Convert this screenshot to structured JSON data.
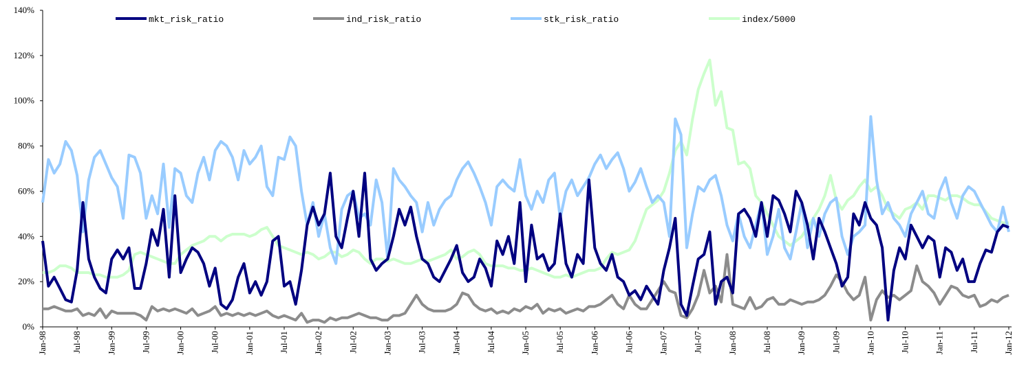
{
  "chart_data": {
    "type": "line",
    "legend": "top",
    "grid": false,
    "ylim": [
      0,
      140
    ],
    "yticks": [
      {
        "value": 0,
        "label": "0%"
      },
      {
        "value": 20,
        "label": "20%"
      },
      {
        "value": 40,
        "label": "40%"
      },
      {
        "value": 60,
        "label": "60%"
      },
      {
        "value": 80,
        "label": "80%"
      },
      {
        "value": 100,
        "label": "100%"
      },
      {
        "value": 120,
        "label": "120%"
      },
      {
        "value": 140,
        "label": "140%"
      }
    ],
    "categories": [
      "Jan-98",
      null,
      null,
      null,
      null,
      null,
      "Jul-98",
      null,
      null,
      null,
      null,
      null,
      "Jan-99",
      null,
      null,
      null,
      null,
      null,
      "Jul-99",
      null,
      null,
      null,
      null,
      null,
      "Jan-00",
      null,
      null,
      null,
      null,
      null,
      "Jul-00",
      null,
      null,
      null,
      null,
      null,
      "Jan-01",
      null,
      null,
      null,
      null,
      null,
      "Jul-01",
      null,
      null,
      null,
      null,
      null,
      "Jan-02",
      null,
      null,
      null,
      null,
      null,
      "Jul-02",
      null,
      null,
      null,
      null,
      null,
      "Jan-03",
      null,
      null,
      null,
      null,
      null,
      "Jul-03",
      null,
      null,
      null,
      null,
      null,
      "Jan-04",
      null,
      null,
      null,
      null,
      null,
      "Jul-04",
      null,
      null,
      null,
      null,
      null,
      "Jan-05",
      null,
      null,
      null,
      null,
      null,
      "Jul-05",
      null,
      null,
      null,
      null,
      null,
      "Jan-06",
      null,
      null,
      null,
      null,
      null,
      "Jul-06",
      null,
      null,
      null,
      null,
      null,
      "Jan-07",
      null,
      null,
      null,
      null,
      null,
      "Jul-07",
      null,
      null,
      null,
      null,
      null,
      "Jan-08",
      null,
      null,
      null,
      null,
      null,
      "Jul-08",
      null,
      null,
      null,
      null,
      null,
      "Jan-09",
      null,
      null,
      null,
      null,
      null,
      "Jul-09",
      null,
      null,
      null,
      null,
      null,
      "Jan-10",
      null,
      null,
      null,
      null,
      null,
      "Jul-10",
      null,
      null,
      null,
      null,
      null,
      "Jan-11",
      null,
      null,
      null,
      null,
      null,
      "Jul-11",
      null,
      null,
      null,
      null,
      null,
      "Jan-12"
    ],
    "series": [
      {
        "name": "mkt_risk_ratio",
        "color": "#000080",
        "values": [
          38,
          18,
          22,
          17,
          12,
          11,
          25,
          55,
          30,
          22,
          17,
          15,
          30,
          34,
          30,
          35,
          17,
          17,
          28,
          43,
          36,
          52,
          22,
          58,
          24,
          30,
          35,
          33,
          28,
          18,
          26,
          10,
          8,
          12,
          22,
          28,
          15,
          20,
          14,
          20,
          38,
          40,
          18,
          20,
          10,
          25,
          45,
          53,
          45,
          50,
          68,
          40,
          35,
          48,
          60,
          40,
          68,
          30,
          25,
          28,
          30,
          40,
          52,
          45,
          53,
          40,
          30,
          28,
          22,
          20,
          25,
          30,
          36,
          24,
          20,
          22,
          30,
          26,
          18,
          38,
          32,
          40,
          28,
          55,
          20,
          45,
          30,
          32,
          25,
          28,
          50,
          28,
          22,
          32,
          28,
          65,
          35,
          28,
          25,
          32,
          22,
          20,
          14,
          16,
          12,
          18,
          14,
          10,
          25,
          35,
          48,
          10,
          5,
          18,
          30,
          32,
          42,
          10,
          20,
          22,
          15,
          50,
          52,
          48,
          40,
          55,
          40,
          58,
          56,
          50,
          42,
          60,
          55,
          45,
          30,
          48,
          42,
          35,
          28,
          18,
          22,
          50,
          45,
          55,
          48,
          45,
          35,
          3,
          25,
          35,
          30,
          45,
          40,
          35,
          40,
          38,
          22,
          35,
          33,
          25,
          30,
          20,
          20,
          28,
          34,
          33,
          42,
          45,
          44
        ]
      },
      {
        "name": "ind_risk_ratio",
        "color": "#8c8c8c",
        "values": [
          8,
          8,
          9,
          8,
          7,
          7,
          8,
          5,
          6,
          5,
          8,
          4,
          7,
          6,
          6,
          6,
          6,
          5,
          3,
          9,
          7,
          8,
          7,
          8,
          7,
          6,
          8,
          5,
          6,
          7,
          9,
          5,
          6,
          5,
          6,
          5,
          6,
          5,
          6,
          7,
          5,
          4,
          5,
          4,
          3,
          6,
          2,
          3,
          3,
          2,
          4,
          3,
          4,
          4,
          5,
          6,
          5,
          4,
          4,
          3,
          3,
          5,
          5,
          6,
          10,
          14,
          10,
          8,
          7,
          7,
          7,
          8,
          10,
          15,
          14,
          10,
          8,
          7,
          8,
          6,
          7,
          6,
          8,
          7,
          9,
          8,
          10,
          6,
          8,
          7,
          8,
          6,
          7,
          8,
          7,
          9,
          9,
          10,
          12,
          14,
          10,
          8,
          14,
          10,
          8,
          8,
          12,
          16,
          20,
          16,
          15,
          5,
          4,
          8,
          14,
          25,
          15,
          18,
          11,
          32,
          10,
          9,
          8,
          13,
          8,
          9,
          12,
          13,
          10,
          10,
          12,
          11,
          10,
          11,
          11,
          12,
          14,
          18,
          23,
          20,
          15,
          12,
          14,
          22,
          3,
          12,
          16,
          13,
          14,
          12,
          14,
          16,
          27,
          20,
          18,
          15,
          10,
          14,
          18,
          17,
          14,
          13,
          14,
          9,
          10,
          12,
          11,
          13,
          14
        ]
      },
      {
        "name": "stk_risk_ratio",
        "color": "#99ccff",
        "values": [
          55,
          74,
          68,
          72,
          82,
          78,
          67,
          42,
          65,
          75,
          78,
          72,
          66,
          62,
          48,
          76,
          75,
          68,
          48,
          58,
          50,
          72,
          44,
          70,
          68,
          58,
          55,
          68,
          75,
          65,
          78,
          82,
          80,
          75,
          65,
          78,
          72,
          75,
          80,
          62,
          58,
          75,
          74,
          84,
          80,
          60,
          45,
          55,
          40,
          50,
          35,
          28,
          52,
          58,
          60,
          48,
          50,
          45,
          65,
          55,
          30,
          70,
          65,
          62,
          58,
          55,
          42,
          55,
          45,
          52,
          56,
          58,
          65,
          70,
          73,
          68,
          62,
          55,
          45,
          62,
          65,
          62,
          60,
          74,
          58,
          52,
          60,
          55,
          65,
          68,
          48,
          60,
          65,
          58,
          62,
          66,
          72,
          76,
          70,
          74,
          77,
          70,
          60,
          64,
          70,
          62,
          55,
          58,
          55,
          40,
          92,
          85,
          35,
          50,
          62,
          60,
          65,
          67,
          58,
          45,
          38,
          50,
          40,
          35,
          45,
          55,
          32,
          40,
          52,
          35,
          30,
          42,
          55,
          35,
          48,
          40,
          50,
          55,
          57,
          40,
          32,
          40,
          42,
          45,
          93,
          65,
          50,
          55,
          48,
          45,
          40,
          50,
          55,
          60,
          50,
          48,
          60,
          66,
          55,
          48,
          58,
          62,
          60,
          55,
          50,
          45,
          42,
          53,
          42
        ]
      },
      {
        "name": "index/5000",
        "color": "#ccffcc",
        "values": [
          24,
          24,
          25,
          27,
          27,
          26,
          24,
          24,
          24,
          23,
          23,
          22,
          22,
          22,
          23,
          25,
          32,
          33,
          32,
          31,
          30,
          29,
          28,
          28,
          32,
          34,
          36,
          37,
          38,
          40,
          40,
          38,
          40,
          41,
          41,
          41,
          40,
          41,
          43,
          44,
          40,
          36,
          35,
          34,
          33,
          32,
          33,
          32,
          30,
          31,
          33,
          33,
          31,
          32,
          34,
          33,
          30,
          28,
          30,
          30,
          29,
          30,
          29,
          28,
          28,
          29,
          30,
          29,
          30,
          31,
          32,
          34,
          30,
          31,
          33,
          34,
          32,
          28,
          27,
          27,
          27,
          26,
          26,
          25,
          25,
          26,
          25,
          24,
          23,
          22,
          22,
          23,
          22,
          23,
          24,
          25,
          25,
          26,
          30,
          33,
          32,
          33,
          34,
          38,
          45,
          52,
          54,
          56,
          60,
          68,
          78,
          82,
          76,
          92,
          105,
          112,
          118,
          98,
          104,
          88,
          87,
          72,
          73,
          70,
          58,
          55,
          50,
          45,
          40,
          38,
          36,
          38,
          40,
          44,
          48,
          52,
          58,
          67,
          56,
          52,
          56,
          58,
          62,
          65,
          60,
          62,
          58,
          52,
          50,
          48,
          52,
          53,
          55,
          52,
          58,
          58,
          57,
          56,
          58,
          58,
          57,
          55,
          54,
          54,
          51,
          48,
          47,
          46,
          46
        ]
      }
    ]
  }
}
